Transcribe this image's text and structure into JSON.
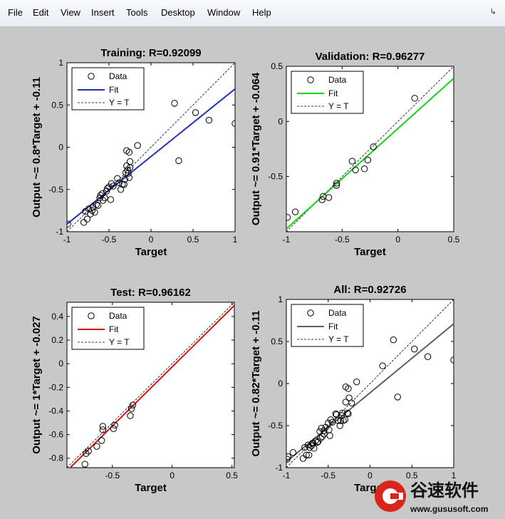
{
  "menu": [
    "File",
    "Edit",
    "View",
    "Insert",
    "Tools",
    "Desktop",
    "Window",
    "Help"
  ],
  "dock_icon": "dock-arrow-icon",
  "watermark": {
    "brand": "谷速软件",
    "url": "www.gususoft.com"
  },
  "colors": {
    "training_fit": "#1f32b4",
    "validation_fit": "#12d612",
    "test_fit": "#d41414",
    "all_fit": "#5f5f5f",
    "background": "#c8c8c8"
  },
  "chart_data": [
    {
      "type": "scatter",
      "title": "Training: R=0.92099",
      "xlabel": "Target",
      "ylabel": "Output ~= 0.8*Target + -0.11",
      "xlim": [
        -1,
        1
      ],
      "ylim": [
        -1,
        1
      ],
      "xticks": [
        -1,
        -0.5,
        0,
        0.5,
        1
      ],
      "xtick_labels": [
        "-1",
        "-0.5",
        "0",
        "0.5",
        "1"
      ],
      "yticks": [
        -1,
        -0.5,
        0,
        0.5,
        1
      ],
      "ytick_labels": [
        "-1",
        "-0.5",
        "0",
        "0.5",
        "1"
      ],
      "legend": [
        "Data",
        "Fit",
        "Y = T"
      ],
      "legend_position": "top-left",
      "fit": {
        "slope": 0.8,
        "intercept": -0.11
      },
      "points": [
        [
          -0.99,
          -0.91
        ],
        [
          -0.8,
          -0.89
        ],
        [
          -0.78,
          -0.76
        ],
        [
          -0.76,
          -0.85
        ],
        [
          -0.74,
          -0.73
        ],
        [
          -0.72,
          -0.79
        ],
        [
          -0.7,
          -0.75
        ],
        [
          -0.69,
          -0.71
        ],
        [
          -0.67,
          -0.77
        ],
        [
          -0.65,
          -0.68
        ],
        [
          -0.63,
          -0.69
        ],
        [
          -0.61,
          -0.6
        ],
        [
          -0.6,
          -0.57
        ],
        [
          -0.58,
          -0.55
        ],
        [
          -0.57,
          -0.63
        ],
        [
          -0.55,
          -0.6
        ],
        [
          -0.53,
          -0.52
        ],
        [
          -0.52,
          -0.49
        ],
        [
          -0.5,
          -0.47
        ],
        [
          -0.48,
          -0.62
        ],
        [
          -0.47,
          -0.43
        ],
        [
          -0.45,
          -0.46
        ],
        [
          -0.4,
          -0.37
        ],
        [
          -0.38,
          -0.42
        ],
        [
          -0.36,
          -0.5
        ],
        [
          -0.34,
          -0.44
        ],
        [
          -0.32,
          -0.44
        ],
        [
          -0.31,
          -0.38
        ],
        [
          -0.3,
          -0.3
        ],
        [
          -0.29,
          -0.22
        ],
        [
          -0.28,
          -0.27
        ],
        [
          -0.27,
          -0.31
        ],
        [
          -0.26,
          -0.36
        ],
        [
          -0.25,
          -0.17
        ],
        [
          -0.25,
          -0.24
        ],
        [
          -0.29,
          -0.04
        ],
        [
          -0.26,
          -0.06
        ],
        [
          -0.16,
          0.02
        ],
        [
          0.28,
          0.52
        ],
        [
          0.33,
          -0.16
        ],
        [
          0.53,
          0.41
        ],
        [
          0.69,
          0.32
        ],
        [
          1.0,
          0.28
        ]
      ]
    },
    {
      "type": "scatter",
      "title": "Validation: R=0.96277",
      "xlabel": "Target",
      "ylabel": "Output ~= 0.91*Target + -0.064",
      "xlim": [
        -1,
        0.5
      ],
      "ylim": [
        -1,
        0.5
      ],
      "xticks": [
        -1,
        -0.5,
        0,
        0.5
      ],
      "xtick_labels": [
        "-1",
        "-0.5",
        "0",
        "0.5"
      ],
      "yticks": [
        -0.5,
        0,
        0.5
      ],
      "ytick_labels": [
        "-0.5",
        "0",
        "0.5"
      ],
      "legend": [
        "Data",
        "Fit",
        "Y = T"
      ],
      "legend_position": "top-left",
      "fit": {
        "slope": 0.91,
        "intercept": -0.064
      },
      "points": [
        [
          -0.99,
          -0.87
        ],
        [
          -0.92,
          -0.82
        ],
        [
          -0.68,
          -0.71
        ],
        [
          -0.67,
          -0.68
        ],
        [
          -0.62,
          -0.69
        ],
        [
          -0.55,
          -0.56
        ],
        [
          -0.55,
          -0.58
        ],
        [
          -0.41,
          -0.36
        ],
        [
          -0.38,
          -0.44
        ],
        [
          -0.3,
          -0.43
        ],
        [
          -0.27,
          -0.35
        ],
        [
          -0.22,
          -0.23
        ],
        [
          0.15,
          0.21
        ]
      ]
    },
    {
      "type": "scatter",
      "title": "Test: R=0.96162",
      "xlabel": "Target",
      "ylabel": "Output ~= 1*Target + -0.027",
      "xlim": [
        -0.88,
        0.52
      ],
      "ylim": [
        -0.88,
        0.52
      ],
      "xticks": [
        -0.5,
        0,
        0.5
      ],
      "xtick_labels": [
        "-0.5",
        "0",
        "0.5"
      ],
      "yticks": [
        -0.8,
        -0.6,
        -0.4,
        -0.2,
        0,
        0.2,
        0.4
      ],
      "ytick_labels": [
        "-0.8",
        "-0.6",
        "-0.4",
        "-0.2",
        "0",
        "0.2",
        "0.4"
      ],
      "legend": [
        "Data",
        "Fit",
        "Y = T"
      ],
      "legend_position": "top-left",
      "fit": {
        "slope": 1.0,
        "intercept": -0.027
      },
      "points": [
        [
          -0.73,
          -0.85
        ],
        [
          -0.72,
          -0.76
        ],
        [
          -0.7,
          -0.74
        ],
        [
          -0.63,
          -0.7
        ],
        [
          -0.59,
          -0.65
        ],
        [
          -0.58,
          -0.53
        ],
        [
          -0.58,
          -0.56
        ],
        [
          -0.49,
          -0.55
        ],
        [
          -0.48,
          -0.52
        ],
        [
          -0.35,
          -0.44
        ],
        [
          -0.34,
          -0.38
        ],
        [
          -0.33,
          -0.35
        ]
      ]
    },
    {
      "type": "scatter",
      "title": "All: R=0.92726",
      "xlabel": "Target",
      "ylabel": "Output ~= 0.82*Target + -0.11",
      "xlim": [
        -1,
        1
      ],
      "ylim": [
        -1,
        1
      ],
      "xticks": [
        -1,
        -0.5,
        0,
        0.5,
        1
      ],
      "xtick_labels": [
        "-1",
        "-0.5",
        "0",
        "0.5",
        "1"
      ],
      "yticks": [
        -1,
        -0.5,
        0,
        0.5,
        1
      ],
      "ytick_labels": [
        "-1",
        "-0.5",
        "0",
        "0.5",
        "1"
      ],
      "legend": [
        "Data",
        "Fit",
        "Y = T"
      ],
      "legend_position": "top-left",
      "fit": {
        "slope": 0.82,
        "intercept": -0.11
      },
      "points": [
        [
          -0.99,
          -0.9
        ],
        [
          -0.98,
          -0.87
        ],
        [
          -0.92,
          -0.82
        ],
        [
          -0.8,
          -0.89
        ],
        [
          -0.78,
          -0.76
        ],
        [
          -0.76,
          -0.85
        ],
        [
          -0.74,
          -0.73
        ],
        [
          -0.73,
          -0.85
        ],
        [
          -0.72,
          -0.76
        ],
        [
          -0.7,
          -0.74
        ],
        [
          -0.69,
          -0.71
        ],
        [
          -0.68,
          -0.71
        ],
        [
          -0.67,
          -0.77
        ],
        [
          -0.65,
          -0.68
        ],
        [
          -0.63,
          -0.7
        ],
        [
          -0.62,
          -0.69
        ],
        [
          -0.6,
          -0.57
        ],
        [
          -0.59,
          -0.65
        ],
        [
          -0.58,
          -0.53
        ],
        [
          -0.57,
          -0.63
        ],
        [
          -0.55,
          -0.56
        ],
        [
          -0.55,
          -0.6
        ],
        [
          -0.53,
          -0.52
        ],
        [
          -0.5,
          -0.47
        ],
        [
          -0.49,
          -0.55
        ],
        [
          -0.48,
          -0.62
        ],
        [
          -0.47,
          -0.43
        ],
        [
          -0.45,
          -0.46
        ],
        [
          -0.41,
          -0.36
        ],
        [
          -0.4,
          -0.37
        ],
        [
          -0.38,
          -0.44
        ],
        [
          -0.36,
          -0.5
        ],
        [
          -0.35,
          -0.44
        ],
        [
          -0.34,
          -0.38
        ],
        [
          -0.33,
          -0.35
        ],
        [
          -0.32,
          -0.44
        ],
        [
          -0.3,
          -0.43
        ],
        [
          -0.29,
          -0.22
        ],
        [
          -0.27,
          -0.35
        ],
        [
          -0.26,
          -0.36
        ],
        [
          -0.25,
          -0.17
        ],
        [
          -0.22,
          -0.23
        ],
        [
          -0.29,
          -0.04
        ],
        [
          -0.26,
          -0.06
        ],
        [
          -0.16,
          0.02
        ],
        [
          0.15,
          0.21
        ],
        [
          0.28,
          0.52
        ],
        [
          0.33,
          -0.16
        ],
        [
          0.53,
          0.41
        ],
        [
          0.69,
          0.32
        ],
        [
          1.0,
          0.28
        ]
      ]
    }
  ]
}
